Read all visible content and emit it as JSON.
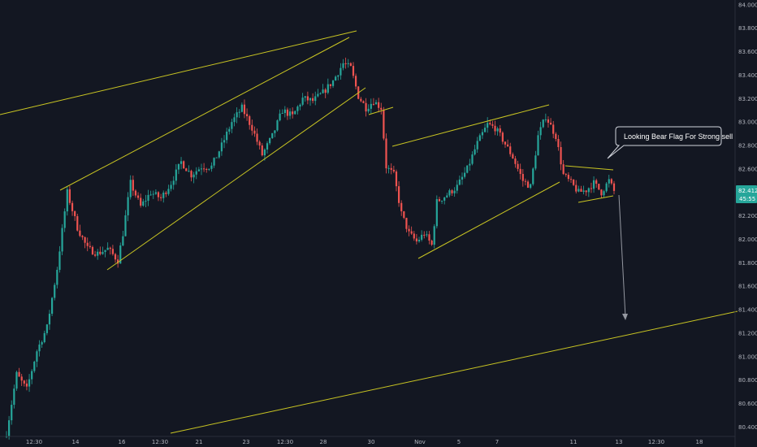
{
  "chart_data": {
    "type": "candlestick",
    "title": "",
    "xlabel": "",
    "ylabel": "",
    "ylim": [
      80.32,
      84.04
    ],
    "grid": false,
    "y_ticks": [
      84.0,
      83.8,
      83.6,
      83.4,
      83.2,
      83.0,
      82.8,
      82.6,
      82.4,
      82.2,
      82.0,
      81.8,
      81.6,
      81.4,
      81.2,
      81.0,
      80.8,
      80.6,
      80.4
    ],
    "y_tick_labels": [
      "84.000",
      "83.800",
      "83.600",
      "83.400",
      "83.200",
      "83.000",
      "82.800",
      "82.600",
      "82.400",
      "82.200",
      "82.000",
      "81.800",
      "81.600",
      "81.400",
      "81.200",
      "81.000",
      "80.800",
      "80.600",
      "80.400"
    ],
    "x_tick_labels": [
      "12:30",
      "14",
      "16",
      "12:30",
      "21",
      "23",
      "12:30",
      "28",
      "30",
      "Nov",
      "5",
      "7",
      "11",
      "13",
      "12:30",
      "18"
    ],
    "last_price": "82.412",
    "countdown": "45:55",
    "annotation": "Looking Bear Flag For Strong sell",
    "price_path": [
      {
        "i": 0,
        "p": 80.35
      },
      {
        "i": 4,
        "p": 80.85
      },
      {
        "i": 8,
        "p": 80.72
      },
      {
        "i": 12,
        "p": 81.05
      },
      {
        "i": 16,
        "p": 81.25
      },
      {
        "i": 20,
        "p": 81.75
      },
      {
        "i": 24,
        "p": 82.4
      },
      {
        "i": 28,
        "p": 82.1
      },
      {
        "i": 32,
        "p": 81.92
      },
      {
        "i": 36,
        "p": 81.88
      },
      {
        "i": 40,
        "p": 81.92
      },
      {
        "i": 44,
        "p": 81.82
      },
      {
        "i": 46,
        "p": 82.05
      },
      {
        "i": 49,
        "p": 82.48
      },
      {
        "i": 53,
        "p": 82.28
      },
      {
        "i": 57,
        "p": 82.4
      },
      {
        "i": 61,
        "p": 82.35
      },
      {
        "i": 65,
        "p": 82.48
      },
      {
        "i": 69,
        "p": 82.66
      },
      {
        "i": 73,
        "p": 82.55
      },
      {
        "i": 77,
        "p": 82.62
      },
      {
        "i": 81,
        "p": 82.62
      },
      {
        "i": 85,
        "p": 82.8
      },
      {
        "i": 89,
        "p": 83.0
      },
      {
        "i": 93,
        "p": 83.12
      },
      {
        "i": 97,
        "p": 82.95
      },
      {
        "i": 101,
        "p": 82.72
      },
      {
        "i": 105,
        "p": 82.88
      },
      {
        "i": 109,
        "p": 83.1
      },
      {
        "i": 113,
        "p": 83.05
      },
      {
        "i": 117,
        "p": 83.2
      },
      {
        "i": 121,
        "p": 83.18
      },
      {
        "i": 125,
        "p": 83.25
      },
      {
        "i": 129,
        "p": 83.35
      },
      {
        "i": 133,
        "p": 83.5
      },
      {
        "i": 136,
        "p": 83.46
      },
      {
        "i": 139,
        "p": 83.22
      },
      {
        "i": 142,
        "p": 83.12
      },
      {
        "i": 145,
        "p": 83.18
      },
      {
        "i": 148,
        "p": 83.12
      },
      {
        "i": 150,
        "p": 82.62
      },
      {
        "i": 153,
        "p": 82.55
      },
      {
        "i": 156,
        "p": 82.22
      },
      {
        "i": 159,
        "p": 82.05
      },
      {
        "i": 162,
        "p": 81.98
      },
      {
        "i": 165,
        "p": 82.05
      },
      {
        "i": 168,
        "p": 81.95
      },
      {
        "i": 170,
        "p": 82.32
      },
      {
        "i": 174,
        "p": 82.38
      },
      {
        "i": 178,
        "p": 82.45
      },
      {
        "i": 182,
        "p": 82.6
      },
      {
        "i": 186,
        "p": 82.82
      },
      {
        "i": 190,
        "p": 82.98
      },
      {
        "i": 193,
        "p": 82.95
      },
      {
        "i": 196,
        "p": 82.85
      },
      {
        "i": 200,
        "p": 82.7
      },
      {
        "i": 204,
        "p": 82.5
      },
      {
        "i": 207,
        "p": 82.45
      },
      {
        "i": 210,
        "p": 82.88
      },
      {
        "i": 213,
        "p": 83.05
      },
      {
        "i": 217,
        "p": 82.88
      },
      {
        "i": 220,
        "p": 82.55
      },
      {
        "i": 223,
        "p": 82.48
      },
      {
        "i": 226,
        "p": 82.4
      },
      {
        "i": 229,
        "p": 82.42
      },
      {
        "i": 232,
        "p": 82.48
      },
      {
        "i": 235,
        "p": 82.4
      },
      {
        "i": 238,
        "p": 82.5
      },
      {
        "i": 240,
        "p": 82.41
      }
    ]
  }
}
